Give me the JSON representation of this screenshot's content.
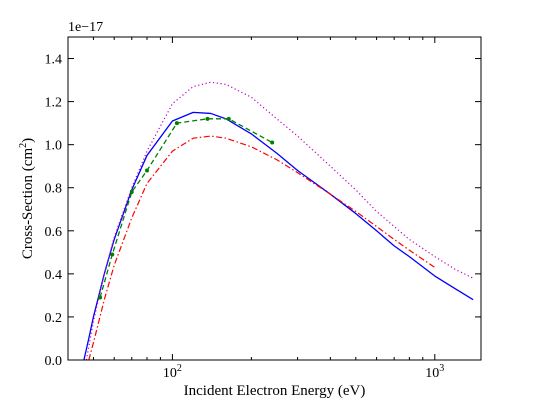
{
  "chart_data": {
    "type": "line",
    "xscale": "log",
    "xlabel": "Incident Electron Energy (eV)",
    "ylabel_base": "Cross-Section (cm",
    "ylabel_sup": "2",
    "ylabel_close": ")",
    "offset_label": "1e−17",
    "xlim": [
      40,
      1500
    ],
    "ylim": [
      0.0,
      1.5
    ],
    "x_ticks": [
      {
        "value": 100,
        "base": "10",
        "exp": "2"
      },
      {
        "value": 1000,
        "base": "10",
        "exp": "3"
      }
    ],
    "x_minor_ticks": [
      40,
      50,
      60,
      70,
      80,
      90,
      200,
      300,
      400,
      500,
      600,
      700,
      800,
      900
    ],
    "y_ticks": [
      {
        "value": 0.0,
        "label": "0.0"
      },
      {
        "value": 0.2,
        "label": "0.2"
      },
      {
        "value": 0.4,
        "label": "0.4"
      },
      {
        "value": 0.6,
        "label": "0.6"
      },
      {
        "value": 0.8,
        "label": "0.8"
      },
      {
        "value": 1.0,
        "label": "1.0"
      },
      {
        "value": 1.2,
        "label": "1.2"
      },
      {
        "value": 1.4,
        "label": "1.4"
      }
    ],
    "grid": false,
    "series": [
      {
        "color": "#0000ff",
        "dash": "",
        "width": 1.3,
        "markers": false,
        "x": [
          46,
          48,
          50,
          55,
          60,
          70,
          80,
          100,
          120,
          140,
          160,
          200,
          250,
          300,
          400,
          500,
          600,
          700,
          800,
          1000,
          1200,
          1400
        ],
        "y": [
          0.0,
          0.1,
          0.2,
          0.4,
          0.56,
          0.79,
          0.95,
          1.11,
          1.15,
          1.145,
          1.12,
          1.05,
          0.96,
          0.88,
          0.77,
          0.68,
          0.6,
          0.53,
          0.48,
          0.39,
          0.33,
          0.28
        ]
      },
      {
        "color": "#bf00bf",
        "dash": "1.2,2.6",
        "width": 1.2,
        "markers": false,
        "x": [
          47,
          50,
          55,
          60,
          70,
          80,
          100,
          120,
          140,
          160,
          200,
          250,
          300,
          400,
          500,
          600,
          700,
          800,
          1000,
          1200,
          1400
        ],
        "y": [
          0.0,
          0.18,
          0.4,
          0.57,
          0.8,
          0.97,
          1.19,
          1.27,
          1.29,
          1.28,
          1.22,
          1.12,
          1.04,
          0.9,
          0.79,
          0.69,
          0.62,
          0.56,
          0.48,
          0.42,
          0.38
        ]
      },
      {
        "color": "#ff0000",
        "dash": "6,2.5,1.5,2.5",
        "width": 1.2,
        "markers": false,
        "x": [
          48,
          50,
          55,
          60,
          70,
          80,
          100,
          120,
          140,
          160,
          200,
          250,
          300,
          400,
          500,
          600,
          700,
          800,
          1000
        ],
        "y": [
          0.0,
          0.08,
          0.28,
          0.44,
          0.66,
          0.82,
          0.97,
          1.03,
          1.04,
          1.03,
          0.99,
          0.93,
          0.87,
          0.77,
          0.69,
          0.62,
          0.56,
          0.51,
          0.43
        ]
      },
      {
        "color": "#008000",
        "dash": "5,3",
        "width": 1.3,
        "markers": true,
        "x": [
          53,
          59,
          70,
          80,
          104,
          136,
          164,
          240
        ],
        "y": [
          0.29,
          0.49,
          0.78,
          0.88,
          1.1,
          1.12,
          1.12,
          1.01
        ]
      }
    ]
  }
}
